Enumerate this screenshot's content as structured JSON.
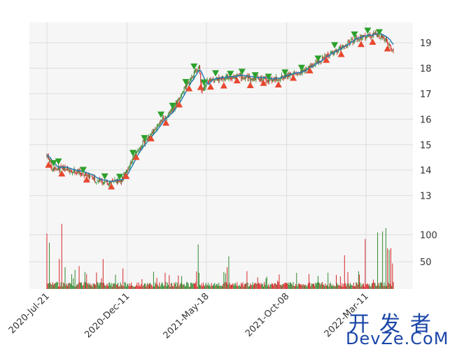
{
  "chart_data": {
    "type": "candlestick",
    "grid": true,
    "price_axis": {
      "ylim": [
        12.0,
        19.8
      ],
      "ticks": [
        13,
        14,
        15,
        16,
        17,
        18,
        19
      ]
    },
    "volume_axis": {
      "ylim": [
        0,
        125
      ],
      "ticks": [
        50,
        100
      ],
      "tick_labels": [
        "50",
        "100"
      ]
    },
    "x_ticks": [
      "2020-Jul-21",
      "2020-Dec-11",
      "2021-May-18",
      "2021-Oct-08",
      "2022-Mar-11"
    ],
    "bars_count": 420,
    "colors": {
      "up": "#2f8a2f",
      "down": "#d62728",
      "ma": "#1f77b4",
      "buy_marker": "#2ca02c",
      "sell_marker": "#e8482f"
    },
    "price_path": [
      [
        0,
        14.6
      ],
      [
        6,
        14.1
      ],
      [
        20,
        14.05
      ],
      [
        40,
        13.9
      ],
      [
        60,
        13.6
      ],
      [
        75,
        13.5
      ],
      [
        90,
        13.6
      ],
      [
        100,
        14.2
      ],
      [
        110,
        14.8
      ],
      [
        120,
        15.2
      ],
      [
        130,
        15.6
      ],
      [
        140,
        16.0
      ],
      [
        150,
        16.3
      ],
      [
        160,
        16.8
      ],
      [
        170,
        17.4
      ],
      [
        180,
        17.9
      ],
      [
        184,
        18.05
      ],
      [
        187,
        17.1
      ],
      [
        195,
        17.5
      ],
      [
        210,
        17.6
      ],
      [
        230,
        17.65
      ],
      [
        250,
        17.6
      ],
      [
        270,
        17.55
      ],
      [
        290,
        17.7
      ],
      [
        310,
        17.9
      ],
      [
        330,
        18.3
      ],
      [
        345,
        18.6
      ],
      [
        360,
        18.9
      ],
      [
        375,
        19.2
      ],
      [
        390,
        19.25
      ],
      [
        400,
        19.35
      ],
      [
        410,
        19.1
      ],
      [
        419,
        18.7
      ]
    ],
    "volume_spikes": [
      [
        0,
        102
      ],
      [
        3,
        85
      ],
      [
        15,
        55
      ],
      [
        18,
        120
      ],
      [
        22,
        40
      ],
      [
        34,
        35
      ],
      [
        39,
        42
      ],
      [
        68,
        55
      ],
      [
        92,
        38
      ],
      [
        183,
        82
      ],
      [
        218,
        40
      ],
      [
        220,
        60
      ],
      [
        340,
        30
      ],
      [
        360,
        62
      ],
      [
        385,
        92
      ],
      [
        400,
        104
      ],
      [
        406,
        106
      ],
      [
        410,
        112
      ],
      [
        412,
        75
      ],
      [
        414,
        72
      ],
      [
        416,
        75
      ],
      [
        418,
        47
      ]
    ],
    "buy_markers": [
      8,
      14,
      44,
      70,
      88,
      104,
      118,
      138,
      152,
      168,
      178,
      190,
      204,
      222,
      236,
      252,
      268,
      288,
      308,
      328,
      348,
      372,
      388,
      402
    ],
    "sell_markers": [
      2,
      18,
      48,
      78,
      96,
      108,
      126,
      144,
      160,
      172,
      186,
      198,
      214,
      230,
      246,
      262,
      280,
      298,
      318,
      338,
      356,
      380,
      394,
      412
    ]
  },
  "watermark": {
    "cn": "开发者",
    "en": "DevZe.CoM"
  }
}
